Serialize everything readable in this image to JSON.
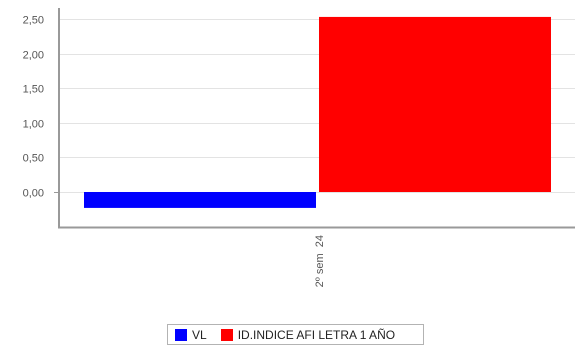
{
  "chart_data": {
    "type": "bar",
    "categories": [
      "2º sem  24"
    ],
    "series": [
      {
        "name": "VL",
        "values": [
          -0.23
        ],
        "color": "#0000ff"
      },
      {
        "name": "ID.INDICE AFI LETRA 1 AÑO",
        "values": [
          2.53
        ],
        "color": "#ff0000"
      }
    ],
    "y_ticks": [
      "0,00",
      "0,50",
      "1,00",
      "1,50",
      "2,00",
      "2,50"
    ],
    "ylim": [
      -0.5,
      2.75
    ],
    "grid": true,
    "legend_position": "bottom-center"
  }
}
